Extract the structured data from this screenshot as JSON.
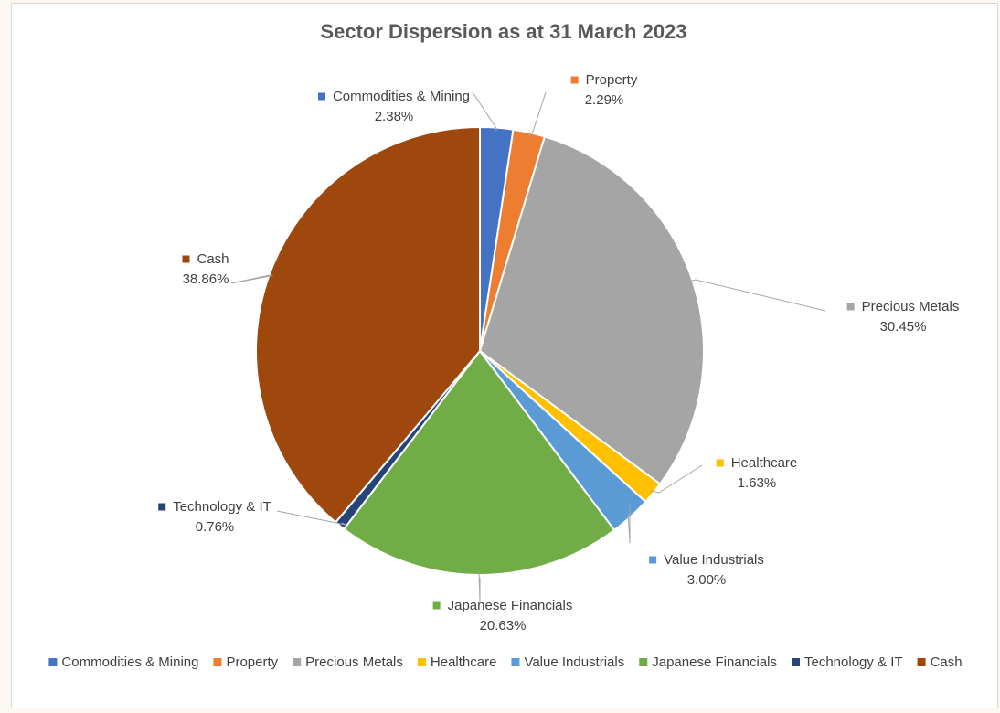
{
  "chart_data": {
    "type": "pie",
    "title": "Sector Dispersion as at 31 March 2023",
    "legend_position": "bottom",
    "slices": [
      {
        "name": "Commodities & Mining",
        "value": 2.38,
        "label": "2.38%",
        "color": "#4472C4"
      },
      {
        "name": "Property",
        "value": 2.29,
        "label": "2.29%",
        "color": "#ED7D31"
      },
      {
        "name": "Precious Metals",
        "value": 30.45,
        "label": "30.45%",
        "color": "#A5A5A5"
      },
      {
        "name": "Healthcare",
        "value": 1.63,
        "label": "1.63%",
        "color": "#FFC000"
      },
      {
        "name": "Value Industrials",
        "value": 3.0,
        "label": "3.00%",
        "color": "#5B9BD5"
      },
      {
        "name": "Japanese Financials",
        "value": 20.63,
        "label": "20.63%",
        "color": "#70AD47"
      },
      {
        "name": "Technology & IT",
        "value": 0.76,
        "label": "0.76%",
        "color": "#264478"
      },
      {
        "name": "Cash",
        "value": 38.86,
        "label": "38.86%",
        "color": "#9E480E"
      }
    ]
  }
}
